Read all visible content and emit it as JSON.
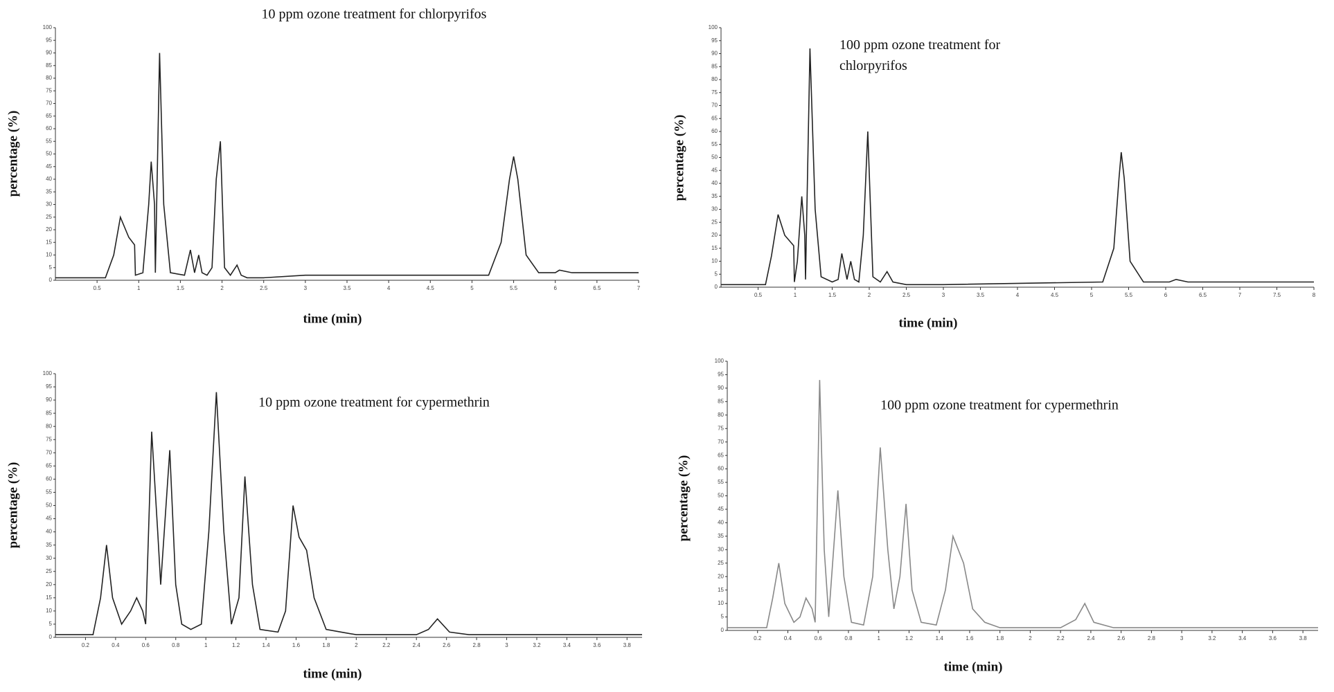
{
  "chart_data": [
    {
      "type": "line",
      "title": "10 ppm ozone treatment for chlorpyrifos",
      "x_label": "time (min)",
      "y_label": "percentage (%)",
      "color": "#222",
      "xlim": [
        0,
        7
      ],
      "xticks": [
        0.5,
        1,
        1.5,
        2,
        2.5,
        3,
        3.5,
        4,
        4.5,
        5,
        5.5,
        6,
        6.5,
        7
      ],
      "ylim": [
        0,
        100
      ],
      "yticks": [
        0,
        5,
        10,
        15,
        20,
        25,
        30,
        35,
        40,
        45,
        50,
        55,
        60,
        65,
        70,
        75,
        80,
        85,
        90,
        95,
        100
      ],
      "x": [
        0,
        0.6,
        0.7,
        0.78,
        0.88,
        0.95,
        0.96,
        1.05,
        1.12,
        1.15,
        1.19,
        1.2,
        1.25,
        1.3,
        1.38,
        1.55,
        1.62,
        1.67,
        1.72,
        1.76,
        1.82,
        1.88,
        1.93,
        1.98,
        2.03,
        2.1,
        2.18,
        2.23,
        2.3,
        2.5,
        3,
        5.2,
        5.35,
        5.45,
        5.5,
        5.55,
        5.65,
        5.8,
        6,
        6.05,
        6.2,
        7
      ],
      "values": [
        1,
        1,
        10,
        25,
        17,
        14,
        2,
        3,
        30,
        47,
        30,
        3,
        90,
        30,
        3,
        2,
        12,
        3,
        10,
        3,
        2,
        5,
        40,
        55,
        5,
        2,
        6,
        2,
        1,
        1,
        2,
        2,
        15,
        40,
        49,
        40,
        10,
        3,
        3,
        4,
        3,
        3
      ]
    },
    {
      "type": "line",
      "title": "100 ppm ozone treatment for chlorpyrifos",
      "x_label": "time (min)",
      "y_label": "percentage (%)",
      "color": "#222",
      "xlim": [
        0,
        8
      ],
      "xticks": [
        0.5,
        1,
        1.5,
        2,
        2.5,
        3,
        3.5,
        4,
        4.5,
        5,
        5.5,
        6,
        6.5,
        7,
        7.5,
        8
      ],
      "ylim": [
        0,
        100
      ],
      "yticks": [
        0,
        5,
        10,
        15,
        20,
        25,
        30,
        35,
        40,
        45,
        50,
        55,
        60,
        65,
        70,
        75,
        80,
        85,
        90,
        95,
        100
      ],
      "x": [
        0,
        0.6,
        0.68,
        0.77,
        0.86,
        0.98,
        0.99,
        1.03,
        1.09,
        1.13,
        1.14,
        1.2,
        1.27,
        1.35,
        1.5,
        1.58,
        1.63,
        1.7,
        1.75,
        1.8,
        1.86,
        1.92,
        1.98,
        2.05,
        2.15,
        2.24,
        2.32,
        2.5,
        3,
        5.15,
        5.3,
        5.37,
        5.4,
        5.44,
        5.52,
        5.7,
        6.05,
        6.14,
        6.3,
        8
      ],
      "values": [
        1,
        1,
        12,
        28,
        20,
        16,
        2,
        10,
        35,
        20,
        3,
        92,
        30,
        4,
        2,
        3,
        13,
        3,
        10,
        3,
        2,
        20,
        60,
        4,
        2,
        6,
        2,
        1,
        1,
        2,
        15,
        42,
        52,
        42,
        10,
        2,
        2,
        3,
        2,
        2
      ]
    },
    {
      "type": "line",
      "title": "10 ppm ozone treatment for cypermethrin",
      "x_label": "time (min)",
      "y_label": "percentage (%)",
      "color": "#222",
      "xlim": [
        0,
        3.9
      ],
      "xticks": [
        0.2,
        0.4,
        0.6,
        0.8,
        1,
        1.2,
        1.4,
        1.6,
        1.8,
        2,
        2.2,
        2.4,
        2.6,
        2.8,
        3,
        3.2,
        3.4,
        3.6,
        3.8
      ],
      "ylim": [
        0,
        100
      ],
      "yticks": [
        0,
        5,
        10,
        15,
        20,
        25,
        30,
        35,
        40,
        45,
        50,
        55,
        60,
        65,
        70,
        75,
        80,
        85,
        90,
        95,
        100
      ],
      "x": [
        0,
        0.25,
        0.3,
        0.34,
        0.38,
        0.44,
        0.5,
        0.54,
        0.58,
        0.6,
        0.64,
        0.68,
        0.7,
        0.76,
        0.8,
        0.84,
        0.9,
        0.97,
        1.02,
        1.07,
        1.12,
        1.17,
        1.22,
        1.26,
        1.31,
        1.36,
        1.48,
        1.53,
        1.58,
        1.62,
        1.67,
        1.72,
        1.8,
        1.9,
        2,
        2.4,
        2.48,
        2.54,
        2.62,
        2.75,
        3.9
      ],
      "values": [
        1,
        1,
        15,
        35,
        15,
        5,
        10,
        15,
        10,
        5,
        78,
        40,
        20,
        71,
        20,
        5,
        3,
        5,
        40,
        93,
        40,
        5,
        15,
        61,
        20,
        3,
        2,
        10,
        50,
        38,
        33,
        15,
        3,
        2,
        1,
        1,
        3,
        7,
        2,
        1,
        1
      ]
    },
    {
      "type": "line",
      "title": "100 ppm ozone treatment for cypermethrin",
      "x_label": "time (min)",
      "y_label": "percentage (%)",
      "color": "#888",
      "xlim": [
        0,
        3.9
      ],
      "xticks": [
        0.2,
        0.4,
        0.6,
        0.8,
        1,
        1.2,
        1.4,
        1.6,
        1.8,
        2,
        2.2,
        2.4,
        2.6,
        2.8,
        3,
        3.2,
        3.4,
        3.6,
        3.8
      ],
      "ylim": [
        0,
        100
      ],
      "yticks": [
        0,
        5,
        10,
        15,
        20,
        25,
        30,
        35,
        40,
        45,
        50,
        55,
        60,
        65,
        70,
        75,
        80,
        85,
        90,
        95,
        100
      ],
      "x": [
        0,
        0.26,
        0.3,
        0.34,
        0.38,
        0.44,
        0.48,
        0.52,
        0.56,
        0.58,
        0.61,
        0.64,
        0.67,
        0.73,
        0.77,
        0.82,
        0.9,
        0.96,
        1.01,
        1.06,
        1.1,
        1.14,
        1.18,
        1.22,
        1.28,
        1.38,
        1.44,
        1.49,
        1.56,
        1.62,
        1.7,
        1.8,
        2.2,
        2.3,
        2.36,
        2.42,
        2.55,
        3.9
      ],
      "values": [
        1,
        1,
        12,
        25,
        10,
        3,
        5,
        12,
        8,
        3,
        93,
        30,
        5,
        52,
        20,
        3,
        2,
        20,
        68,
        30,
        8,
        20,
        47,
        15,
        3,
        2,
        15,
        35,
        25,
        8,
        3,
        1,
        1,
        4,
        10,
        3,
        1,
        1
      ]
    }
  ]
}
